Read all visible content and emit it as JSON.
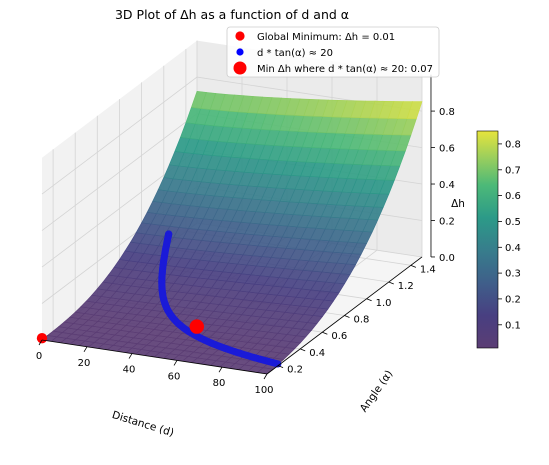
{
  "chart_data": {
    "type": "surface",
    "title": "3D Plot of Δh as a function of d and α",
    "xlabel": "Distance (d)",
    "ylabel": "Angle (α)",
    "zlabel": "Δh",
    "xlim": [
      0,
      100
    ],
    "ylim": [
      0.1,
      1.5
    ],
    "zlim": [
      0,
      0.85
    ],
    "xticks": [
      "0",
      "20",
      "40",
      "60",
      "80",
      "100"
    ],
    "yticks": [
      "0.2",
      "0.4",
      "0.6",
      "0.8",
      "1.0",
      "1.2",
      "1.4"
    ],
    "zticks": [
      "0.0",
      "0.2",
      "0.4",
      "0.6",
      "0.8"
    ],
    "colorbar_ticks": [
      "0.1",
      "0.2",
      "0.3",
      "0.4",
      "0.5",
      "0.6",
      "0.7",
      "0.8"
    ],
    "colormap": "viridis",
    "surface_corners": [
      {
        "d": 0,
        "alpha": 0.1,
        "dh": 0.0
      },
      {
        "d": 100,
        "alpha": 0.1,
        "dh": 0.08
      },
      {
        "d": 0,
        "alpha": 1.5,
        "dh": 0.72
      },
      {
        "d": 100,
        "alpha": 1.5,
        "dh": 0.85
      }
    ],
    "series": [
      {
        "name": "Global Minimum: Δh = 0.01",
        "color": "#ff0000",
        "marker": "circle",
        "points": [
          {
            "d": 0,
            "alpha": 0.1,
            "dh": 0.01
          }
        ]
      },
      {
        "name": "d * tan(α) ≈ 20",
        "color": "#0000ff",
        "marker": "circle",
        "curve": "d*tan(alpha)=20",
        "d_range": [
          14,
          100
        ]
      },
      {
        "name": "Min Δh where d * tan(α) ≈ 20: 0.07",
        "color": "#ff0000",
        "marker": "large-circle",
        "points": [
          {
            "d": 57,
            "alpha": 0.34,
            "dh": 0.07
          }
        ]
      }
    ],
    "legend_position": "top-right",
    "grid": true
  }
}
